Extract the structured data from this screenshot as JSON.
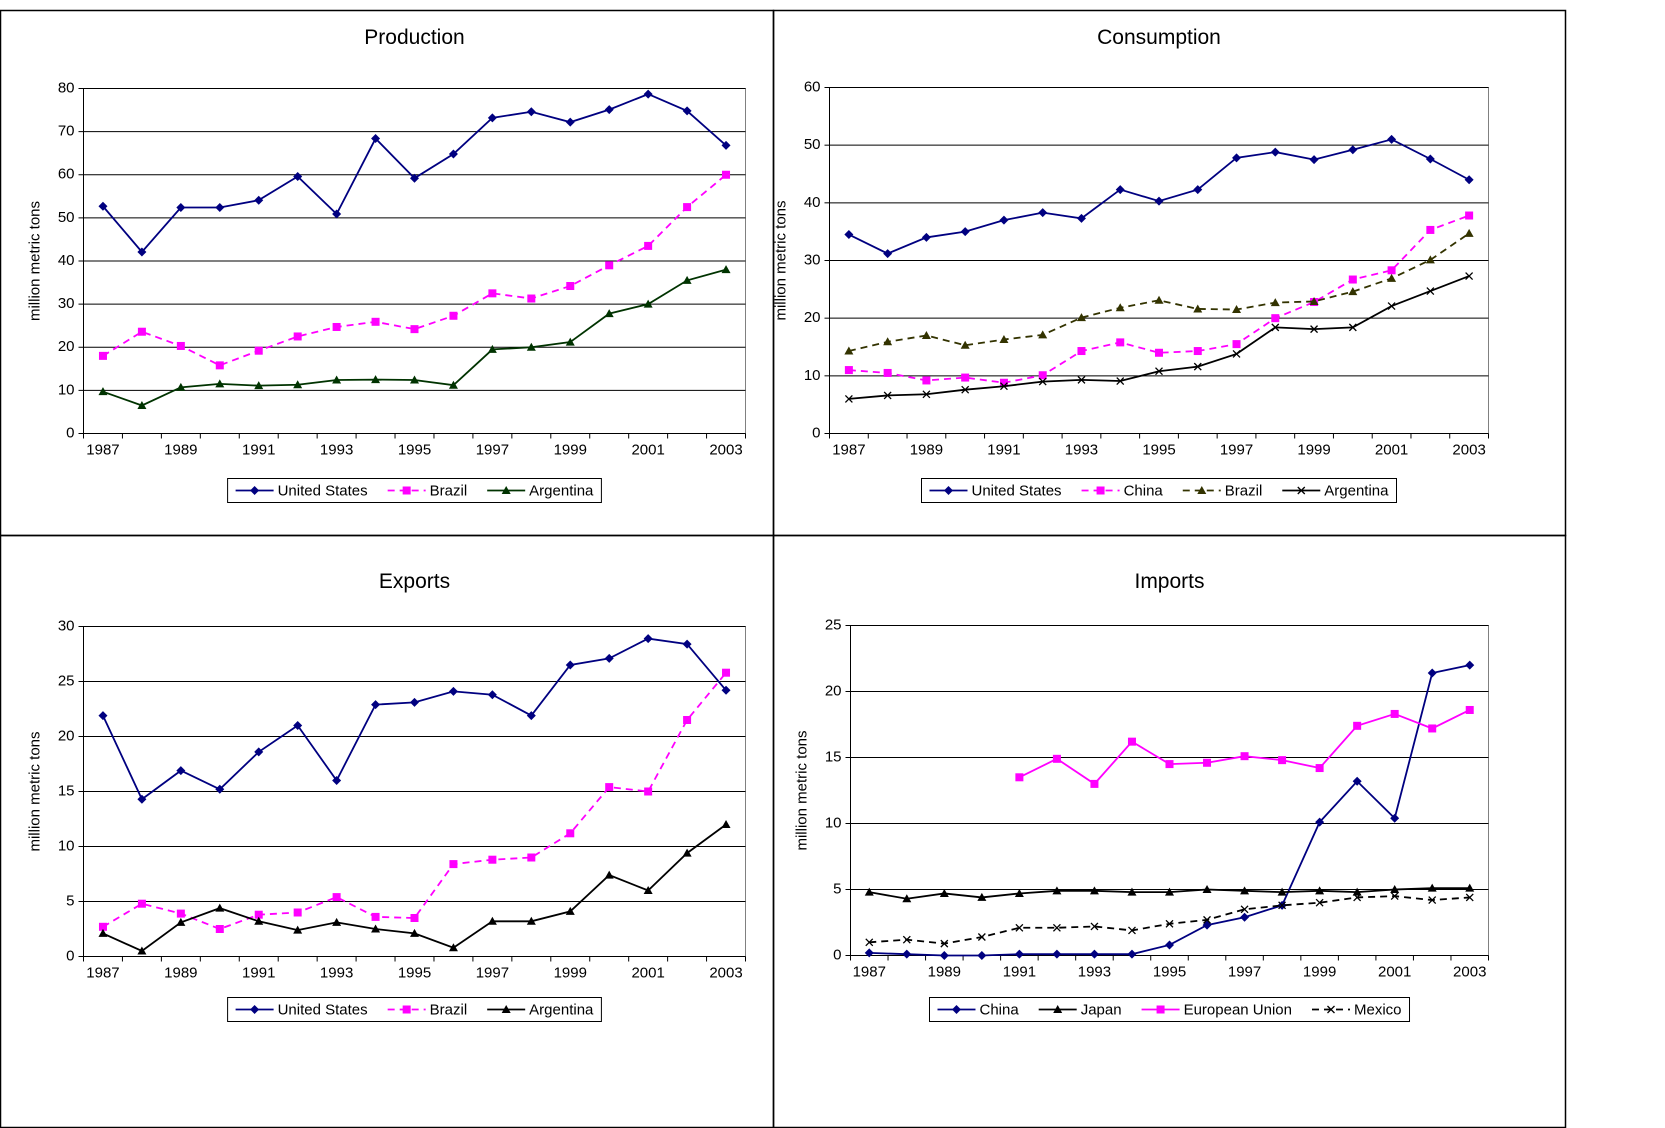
{
  "chart_data": [
    {
      "type": "line",
      "title": "Production",
      "y_label": "million metric tons",
      "categories": [
        "1987",
        null,
        "1989",
        null,
        "1991",
        null,
        "1993",
        null,
        "1995",
        null,
        "1997",
        null,
        "1999",
        null,
        "2001",
        null,
        "2003"
      ],
      "ylim": [
        0,
        80
      ],
      "yticks": [
        0,
        10,
        20,
        30,
        40,
        50,
        60,
        70,
        80
      ],
      "grid": true,
      "series": [
        {
          "name": "United States",
          "color": "#000080",
          "marker": "diamond",
          "dashed": false,
          "values": [
            52.7,
            42.1,
            52.4,
            52.4,
            54.1,
            59.6,
            50.9,
            68.4,
            59.2,
            64.8,
            73.2,
            74.6,
            72.2,
            75.1,
            78.7,
            74.8,
            66.8
          ]
        },
        {
          "name": "Brazil",
          "color": "#ff00ff",
          "marker": "square",
          "dashed": true,
          "values": [
            18.0,
            23.6,
            20.3,
            15.8,
            19.2,
            22.5,
            24.7,
            25.9,
            24.2,
            27.3,
            32.5,
            31.3,
            34.2,
            39.0,
            43.5,
            52.5,
            60.0
          ]
        },
        {
          "name": "Argentina",
          "color": "#003300",
          "marker": "triangle",
          "dashed": false,
          "values": [
            9.7,
            6.5,
            10.7,
            11.5,
            11.1,
            11.3,
            12.4,
            12.5,
            12.4,
            11.2,
            19.5,
            20.0,
            21.2,
            27.8,
            30.0,
            35.5,
            38.0
          ]
        }
      ]
    },
    {
      "type": "line",
      "title": "Consumption",
      "y_label": "million metric tons",
      "categories": [
        "1987",
        null,
        "1989",
        null,
        "1991",
        null,
        "1993",
        null,
        "1995",
        null,
        "1997",
        null,
        "1999",
        null,
        "2001",
        null,
        "2003"
      ],
      "ylim": [
        0,
        60
      ],
      "yticks": [
        0,
        10,
        20,
        30,
        40,
        50,
        60
      ],
      "grid": true,
      "series": [
        {
          "name": "United States",
          "color": "#000080",
          "marker": "diamond",
          "dashed": false,
          "values": [
            34.5,
            31.2,
            34.0,
            35.0,
            37.0,
            38.3,
            37.3,
            42.3,
            40.3,
            42.3,
            47.8,
            48.8,
            47.5,
            49.2,
            51.0,
            47.6,
            44.0
          ]
        },
        {
          "name": "China",
          "color": "#ff00ff",
          "marker": "square",
          "dashed": true,
          "values": [
            11.0,
            10.5,
            9.2,
            9.7,
            8.8,
            10.1,
            14.3,
            15.8,
            14.0,
            14.3,
            15.5,
            20.0,
            22.8,
            26.7,
            28.3,
            35.3,
            37.8
          ]
        },
        {
          "name": "Brazil",
          "color": "#333300",
          "marker": "triangle",
          "dashed": true,
          "values": [
            14.3,
            15.9,
            17.0,
            15.3,
            16.3,
            17.1,
            20.1,
            21.8,
            23.1,
            21.6,
            21.5,
            22.7,
            22.9,
            24.6,
            26.9,
            30.1,
            34.7
          ]
        },
        {
          "name": "Argentina",
          "color": "#000000",
          "marker": "x",
          "dashed": false,
          "values": [
            6.0,
            6.6,
            6.8,
            7.6,
            8.2,
            9.0,
            9.3,
            9.1,
            10.8,
            11.6,
            13.8,
            18.4,
            18.1,
            18.4,
            22.1,
            24.7,
            27.3
          ]
        }
      ]
    },
    {
      "type": "line",
      "title": "Exports",
      "y_label": "million metric tons",
      "categories": [
        "1987",
        null,
        "1989",
        null,
        "1991",
        null,
        "1993",
        null,
        "1995",
        null,
        "1997",
        null,
        "1999",
        null,
        "2001",
        null,
        "2003"
      ],
      "ylim": [
        0,
        30
      ],
      "yticks": [
        0,
        5,
        10,
        15,
        20,
        25,
        30
      ],
      "grid": true,
      "series": [
        {
          "name": "United States",
          "color": "#000080",
          "marker": "diamond",
          "dashed": false,
          "values": [
            21.9,
            14.3,
            16.9,
            15.2,
            18.6,
            21.0,
            16.0,
            22.9,
            23.1,
            24.1,
            23.8,
            21.9,
            26.5,
            27.1,
            28.9,
            28.4,
            24.2
          ]
        },
        {
          "name": "Brazil",
          "color": "#ff00ff",
          "marker": "square",
          "dashed": true,
          "values": [
            2.7,
            4.8,
            3.9,
            2.5,
            3.8,
            4.0,
            5.4,
            3.6,
            3.5,
            8.4,
            8.8,
            9.0,
            11.2,
            15.4,
            15.0,
            21.5,
            25.8
          ]
        },
        {
          "name": "Argentina",
          "color": "#000000",
          "marker": "triangle",
          "dashed": false,
          "values": [
            2.1,
            0.5,
            3.1,
            4.4,
            3.2,
            2.4,
            3.1,
            2.5,
            2.1,
            0.8,
            3.2,
            3.2,
            4.1,
            7.4,
            6.0,
            9.4,
            12.0
          ]
        }
      ]
    },
    {
      "type": "line",
      "title": "Imports",
      "y_label": "million metric tons",
      "categories": [
        "1987",
        null,
        "1989",
        null,
        "1991",
        null,
        "1993",
        null,
        "1995",
        null,
        "1997",
        null,
        "1999",
        null,
        "2001",
        null,
        "2003"
      ],
      "ylim": [
        0,
        25
      ],
      "yticks": [
        0,
        5,
        10,
        15,
        20,
        25
      ],
      "grid": true,
      "series": [
        {
          "name": "China",
          "color": "#000080",
          "marker": "diamond",
          "dashed": false,
          "values": [
            0.2,
            0.1,
            0,
            0,
            0.1,
            0.1,
            0.1,
            0.1,
            0.8,
            2.3,
            2.9,
            3.8,
            10.1,
            13.2,
            10.4,
            21.4,
            22.0
          ]
        },
        {
          "name": "Japan",
          "color": "#000000",
          "marker": "triangle",
          "dashed": false,
          "values": [
            4.8,
            4.3,
            4.7,
            4.4,
            4.7,
            4.9,
            4.9,
            4.8,
            4.8,
            5.0,
            4.9,
            4.8,
            4.9,
            4.8,
            5.0,
            5.1,
            5.1
          ]
        },
        {
          "name": "European Union",
          "color": "#ff00ff",
          "marker": "square",
          "dashed": false,
          "values": [
            null,
            null,
            null,
            null,
            13.5,
            14.9,
            13.0,
            16.2,
            14.5,
            14.6,
            15.1,
            14.8,
            14.2,
            17.4,
            18.3,
            17.2,
            18.6
          ]
        },
        {
          "name": "Mexico",
          "color": "#000000",
          "marker": "x",
          "dashed": true,
          "values": [
            1.0,
            1.2,
            0.9,
            1.4,
            2.1,
            2.1,
            2.2,
            1.9,
            2.4,
            2.7,
            3.5,
            3.8,
            4.0,
            4.4,
            4.5,
            4.2,
            4.4
          ]
        }
      ]
    }
  ]
}
